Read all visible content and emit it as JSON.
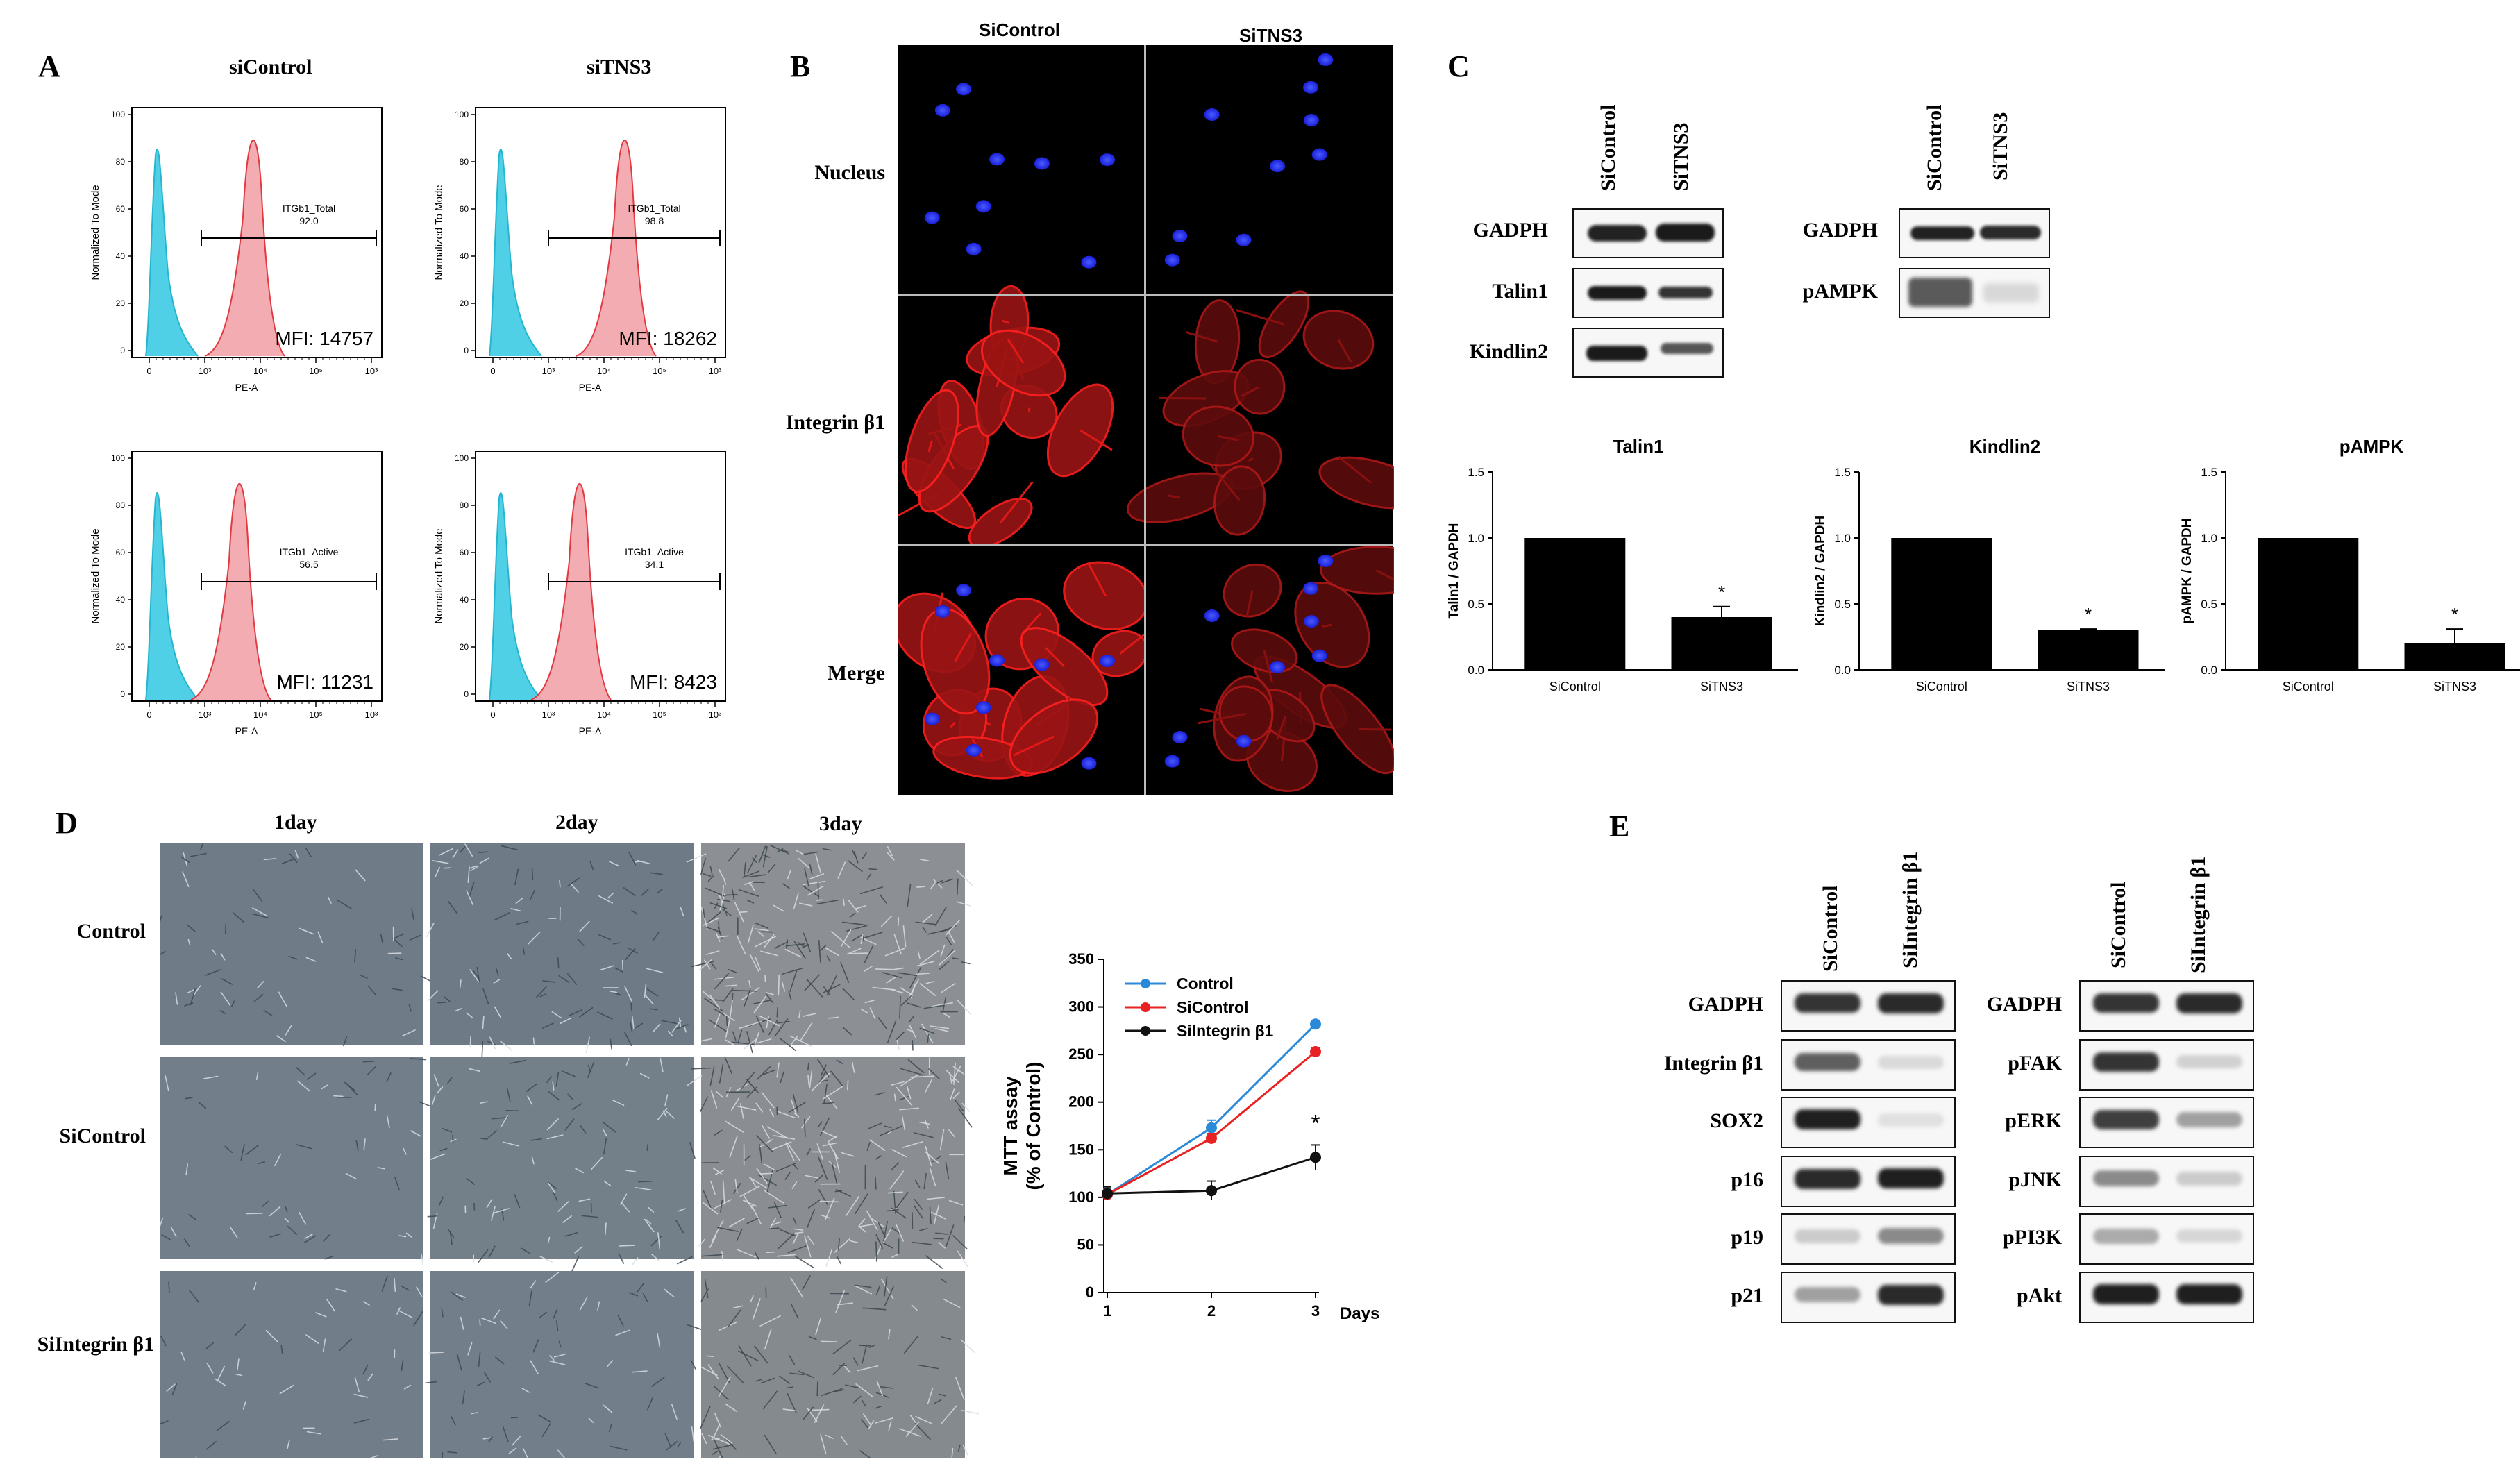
{
  "panels": {
    "A": "A",
    "B": "B",
    "C": "C",
    "D": "D",
    "E": "E"
  },
  "panel_a": {
    "col_headers": [
      "siControl",
      "siTNS3"
    ],
    "ylabel": "Normalized To Mode",
    "xlabel": "PE-A",
    "yticks": [
      "0",
      "20",
      "40",
      "60",
      "80",
      "100"
    ],
    "xticks": [
      "0",
      "10³",
      "10⁴",
      "10⁵",
      "10³"
    ],
    "plots": [
      {
        "gate": "ITGb1_Total",
        "pct": "92.0",
        "mfi": "MFI: 14757"
      },
      {
        "gate": "ITGb1_Total",
        "pct": "98.8",
        "mfi": "MFI: 18262"
      },
      {
        "gate": "ITGb1_Active",
        "pct": "56.5",
        "mfi": "MFI: 11231"
      },
      {
        "gate": "ITGb1_Active",
        "pct": "34.1",
        "mfi": "MFI: 8423"
      }
    ],
    "colors": {
      "unstained": "#4fd0e6",
      "stained": "#f2a3a8"
    }
  },
  "panel_b": {
    "col_headers": [
      "SiControl",
      "SiTNS3"
    ],
    "row_labels": [
      "Nucleus",
      "Integrin β1",
      "Merge"
    ]
  },
  "panel_c": {
    "blot1": {
      "lanes": [
        "SiControl",
        "SiTNS3"
      ],
      "rows": [
        "GADPH",
        "Talin1",
        "Kindlin2"
      ]
    },
    "blot2": {
      "lanes": [
        "SiControl",
        "SiTNS3"
      ],
      "rows": [
        "GADPH",
        "pAMPK"
      ]
    },
    "chart_data": [
      {
        "type": "bar",
        "title": "Talin1",
        "ylabel": "Talin1 / GAPDH",
        "categories": [
          "SiControl",
          "SiTNS3"
        ],
        "values": [
          1.0,
          0.4
        ],
        "errors": [
          0,
          0.08
        ],
        "ylim": [
          0.0,
          1.5
        ],
        "yticks": [
          "0.0",
          "0.5",
          "1.0",
          "1.5"
        ],
        "annotation": "*"
      },
      {
        "type": "bar",
        "title": "Kindlin2",
        "ylabel": "Kindlin2 / GAPDH",
        "categories": [
          "SiControl",
          "SiTNS3"
        ],
        "values": [
          1.0,
          0.3
        ],
        "errors": [
          0,
          0.01
        ],
        "ylim": [
          0.0,
          1.5
        ],
        "yticks": [
          "0.0",
          "0.5",
          "1.0",
          "1.5"
        ],
        "annotation": "*"
      },
      {
        "type": "bar",
        "title": "pAMPK",
        "ylabel": "pAMPK / GAPDH",
        "categories": [
          "SiControl",
          "SiTNS3"
        ],
        "values": [
          1.0,
          0.2
        ],
        "errors": [
          0,
          0.11
        ],
        "ylim": [
          0.0,
          1.5
        ],
        "yticks": [
          "0.0",
          "0.5",
          "1.0",
          "1.5"
        ],
        "annotation": "*"
      }
    ]
  },
  "panel_d": {
    "col_headers": [
      "1day",
      "2day",
      "3day"
    ],
    "row_labels": [
      "Control",
      "SiControl",
      "SiIntegrin β1"
    ],
    "chart_data": {
      "type": "line",
      "x": [
        1,
        2,
        3
      ],
      "xlabel": "Days",
      "ylabel": "MTT assay (% of Control)",
      "ylabel_lines": [
        "MTT assay",
        "(% of Control)"
      ],
      "ylim": [
        0,
        350
      ],
      "yticks": [
        "0",
        "50",
        "100",
        "150",
        "200",
        "250",
        "300",
        "350"
      ],
      "xticks": [
        "1",
        "2",
        "3"
      ],
      "series": [
        {
          "name": "Control",
          "values": [
            103,
            173,
            282
          ],
          "errors": [
            6,
            8,
            3
          ],
          "color": "#2a8ad8"
        },
        {
          "name": "SiControl",
          "values": [
            103,
            162,
            253
          ],
          "errors": [
            5,
            5,
            4
          ],
          "color": "#e82222"
        },
        {
          "name": "SiIntegrin β1",
          "values": [
            104,
            107,
            142
          ],
          "errors": [
            7,
            10,
            13
          ],
          "color": "#111111"
        }
      ],
      "legend_position": "top-left",
      "annotation": "*"
    }
  },
  "panel_e": {
    "blot1": {
      "lanes": [
        "SiControl",
        "SiIntegrin β1"
      ],
      "rows": [
        "GADPH",
        "Integrin β1",
        "SOX2",
        "p16",
        "p19",
        "p21"
      ]
    },
    "blot2": {
      "lanes": [
        "SiControl",
        "SiIntegrin β1"
      ],
      "rows": [
        "GADPH",
        "pFAK",
        "pERK",
        "pJNK",
        "pPI3K",
        "pAkt"
      ]
    }
  }
}
